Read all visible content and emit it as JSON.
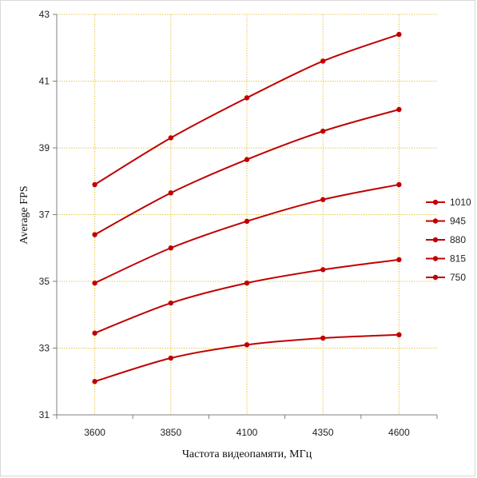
{
  "chart_data": {
    "type": "line",
    "x": [
      3600,
      3850,
      4100,
      4350,
      4600
    ],
    "categories": [
      "3600",
      "3850",
      "4100",
      "4350",
      "4600"
    ],
    "xlabel": "Частота видеопамяти, МГц",
    "ylabel": "Average FPS",
    "ylim": [
      31,
      43
    ],
    "yticks": [
      31,
      33,
      35,
      37,
      39,
      41,
      43
    ],
    "grid": "major, dotted",
    "legend": "right",
    "series_color": "#c00000",
    "gridline_color": "#e6c84f",
    "series": [
      {
        "name": "1010",
        "values": [
          37.9,
          39.3,
          40.5,
          41.6,
          42.4
        ]
      },
      {
        "name": "945",
        "values": [
          36.4,
          37.65,
          38.65,
          39.5,
          40.15
        ]
      },
      {
        "name": "880",
        "values": [
          34.95,
          36.0,
          36.8,
          37.45,
          37.9
        ]
      },
      {
        "name": "815",
        "values": [
          33.45,
          34.35,
          34.95,
          35.35,
          35.65
        ]
      },
      {
        "name": "750",
        "values": [
          32.0,
          32.7,
          33.1,
          33.3,
          33.4
        ]
      }
    ]
  }
}
